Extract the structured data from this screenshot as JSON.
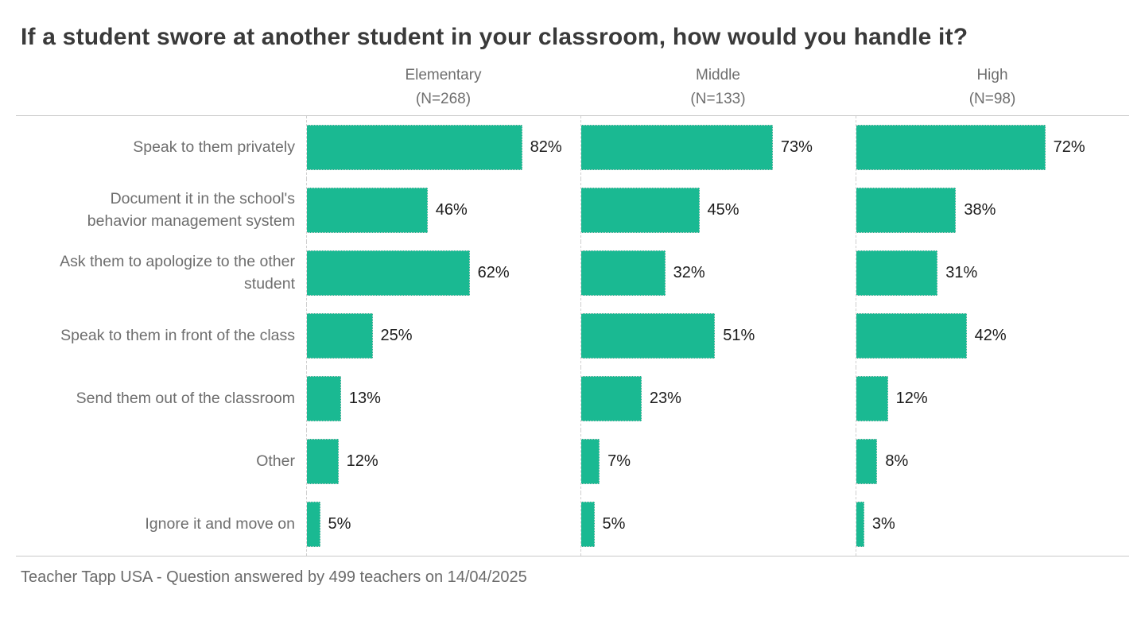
{
  "title": "If a student swore at another student in your classroom, how would you handle it?",
  "footer": "Teacher Tapp USA - Question answered by 499 teachers on 14/04/2025",
  "colors": {
    "bar": "#1ab992",
    "title_text": "#3a3a3a",
    "muted_text": "#6e6e6e",
    "value_text": "#1c1c1c"
  },
  "chart_data": {
    "type": "bar",
    "orientation": "horizontal",
    "value_suffix": "%",
    "xlim": [
      0,
      100
    ],
    "grid": "dashed zero-baseline per panel, top and bottom rules",
    "legend_position": "column headers above each panel",
    "categories": [
      "Speak to them privately",
      "Document it in the school's behavior management system",
      "Ask them to apologize to the other student",
      "Speak to them in front of the class",
      "Send them out of the classroom",
      "Other",
      "Ignore it and move on"
    ],
    "series": [
      {
        "name": "Elementary",
        "n_label": "(N=268)",
        "values": [
          82,
          46,
          62,
          25,
          13,
          12,
          5
        ]
      },
      {
        "name": "Middle",
        "n_label": "(N=133)",
        "values": [
          73,
          45,
          32,
          51,
          23,
          7,
          5
        ]
      },
      {
        "name": "High",
        "n_label": "(N=98)",
        "values": [
          72,
          38,
          31,
          42,
          12,
          8,
          3
        ]
      }
    ]
  }
}
